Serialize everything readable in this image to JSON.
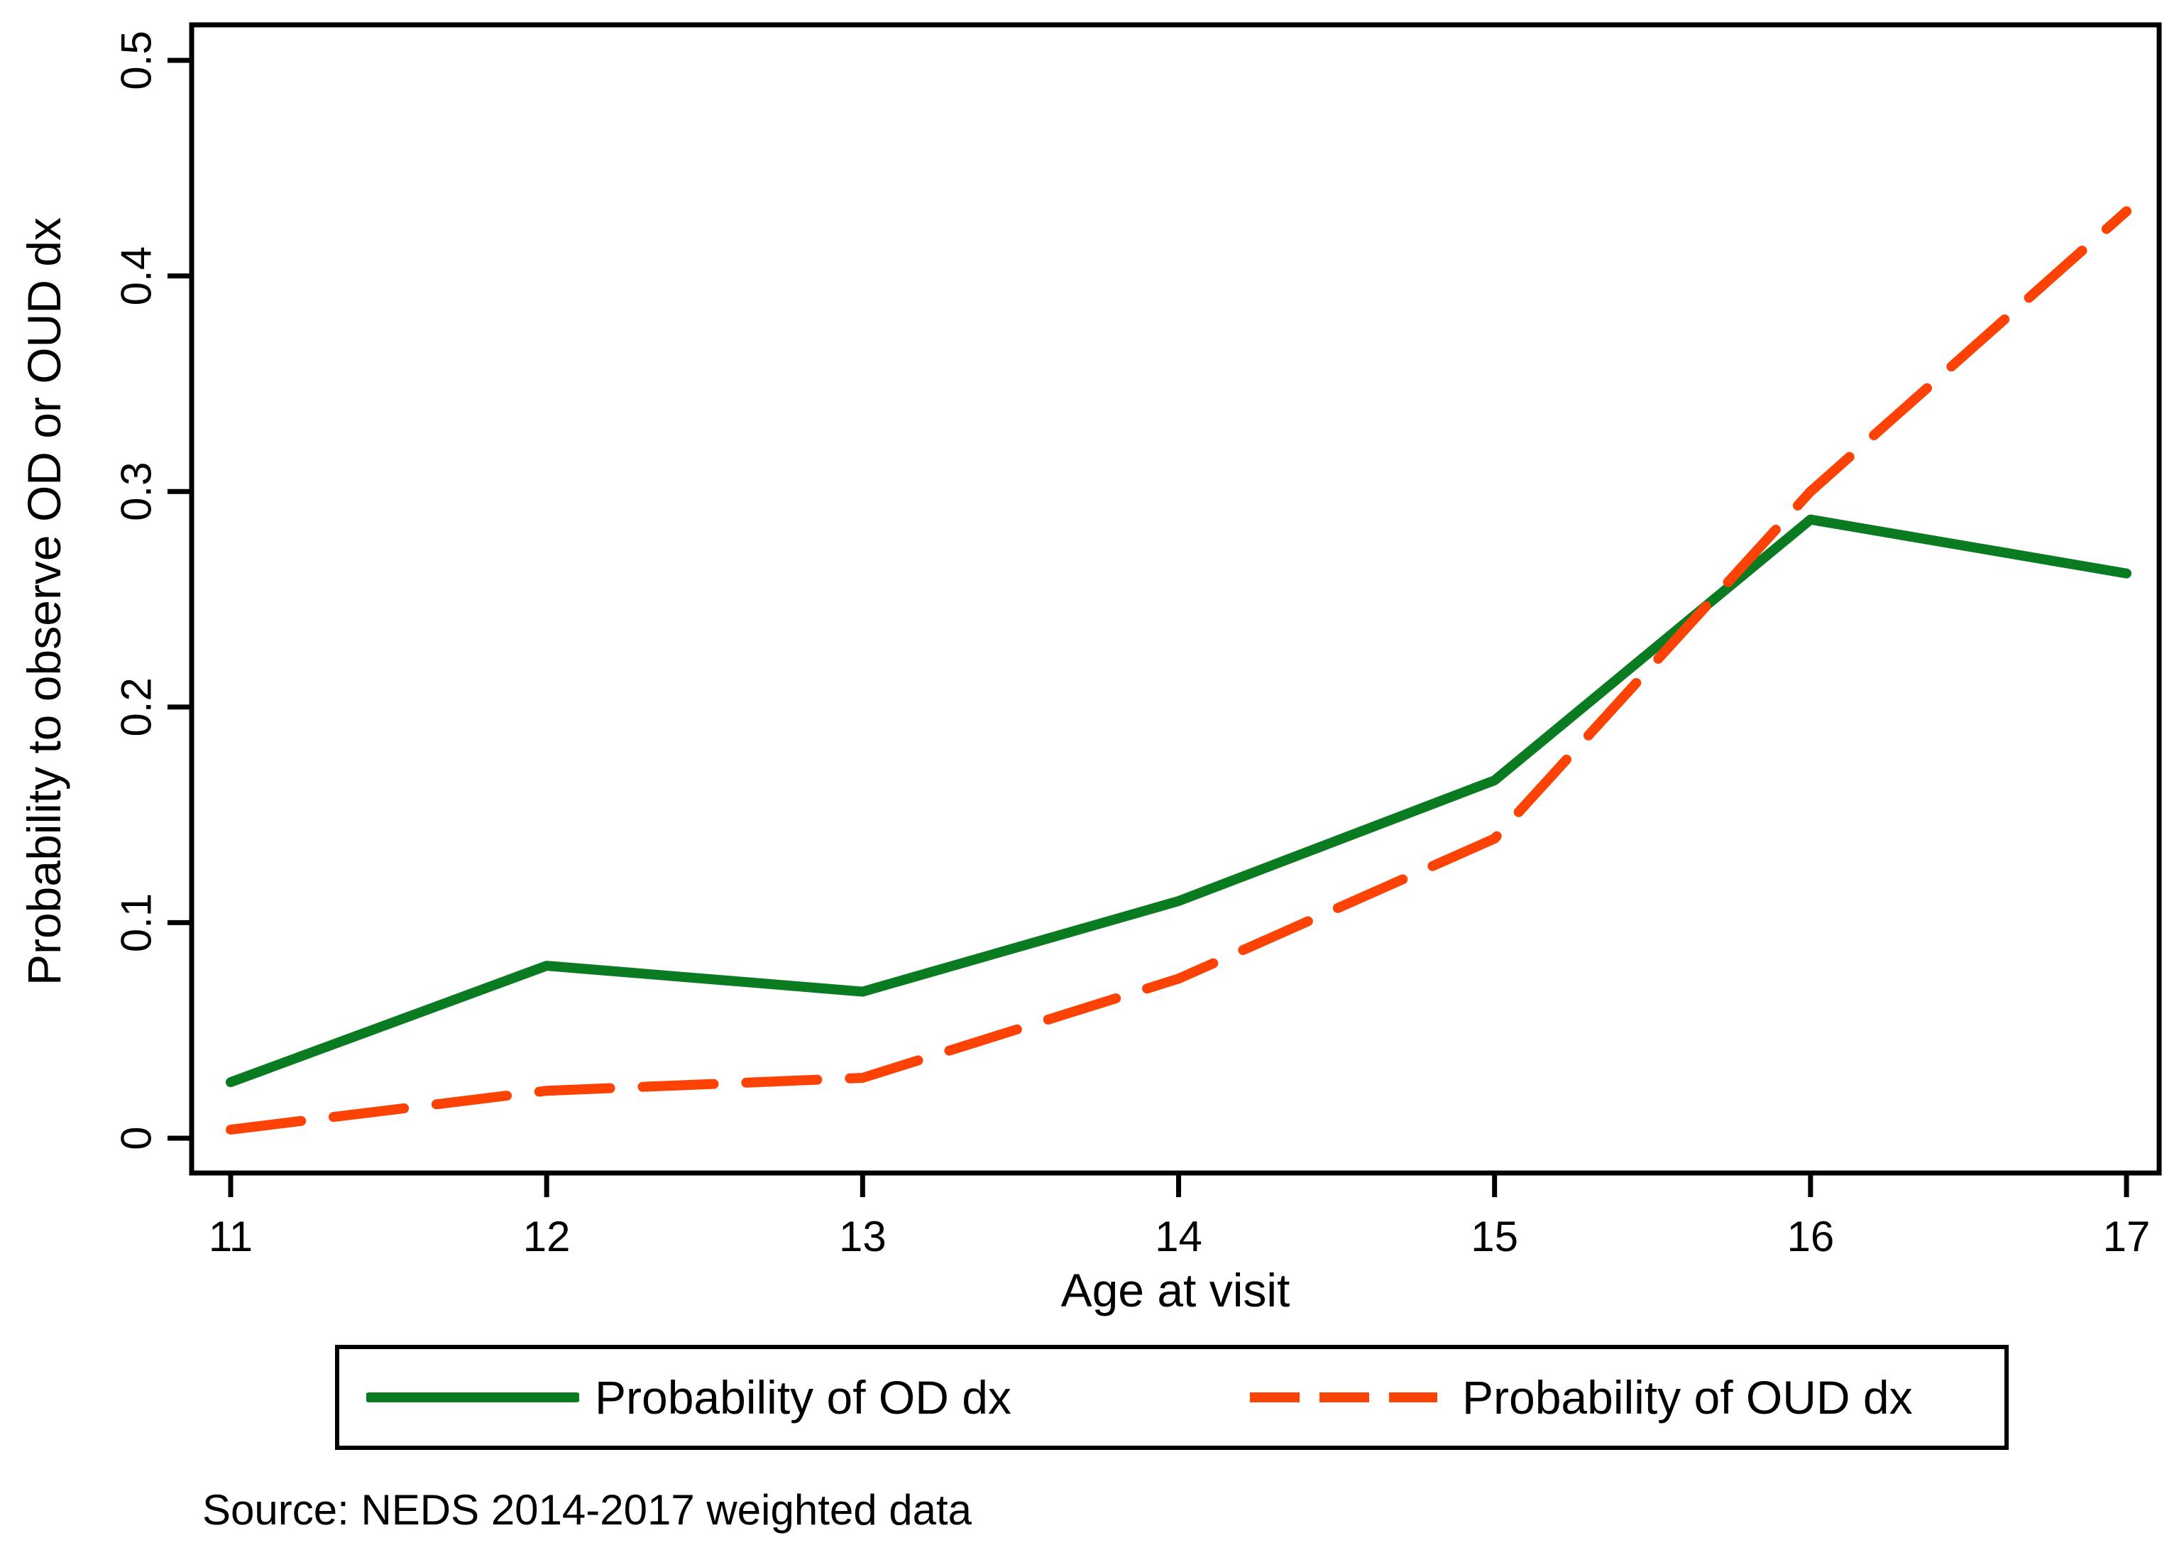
{
  "chart_data": {
    "type": "line",
    "title": "",
    "xlabel": "Age at visit",
    "ylabel": "Probability to observe OD or OUD dx",
    "x": [
      11,
      12,
      13,
      14,
      15,
      16,
      17
    ],
    "xtick_labels": [
      "11",
      "12",
      "13",
      "14",
      "15",
      "16",
      "17"
    ],
    "xlim": [
      11,
      17
    ],
    "ylim": [
      0,
      0.5
    ],
    "ytick_values": [
      0,
      0.1,
      0.2,
      0.3,
      0.4,
      0.5
    ],
    "ytick_labels": [
      "0",
      "0.1",
      "0.2",
      "0.3",
      "0.4",
      "0.5"
    ],
    "grid": "off",
    "legend_position": "bottom",
    "series": [
      {
        "name": "Probability of OD dx",
        "color": "#0a7b21",
        "dash": "solid",
        "values": [
          0.026,
          0.08,
          0.068,
          0.11,
          0.166,
          0.287,
          0.262
        ]
      },
      {
        "name": "Probability of OUD dx",
        "color": "#fd4205",
        "dash": "dashed",
        "values": [
          0.004,
          0.022,
          0.028,
          0.074,
          0.139,
          0.3,
          0.43
        ]
      }
    ]
  },
  "source_note": "Source: NEDS 2014-2017 weighted data",
  "colors": {
    "axis": "#000000",
    "background": "#ffffff",
    "od_line": "#0a7b21",
    "oud_line": "#fd4205"
  }
}
